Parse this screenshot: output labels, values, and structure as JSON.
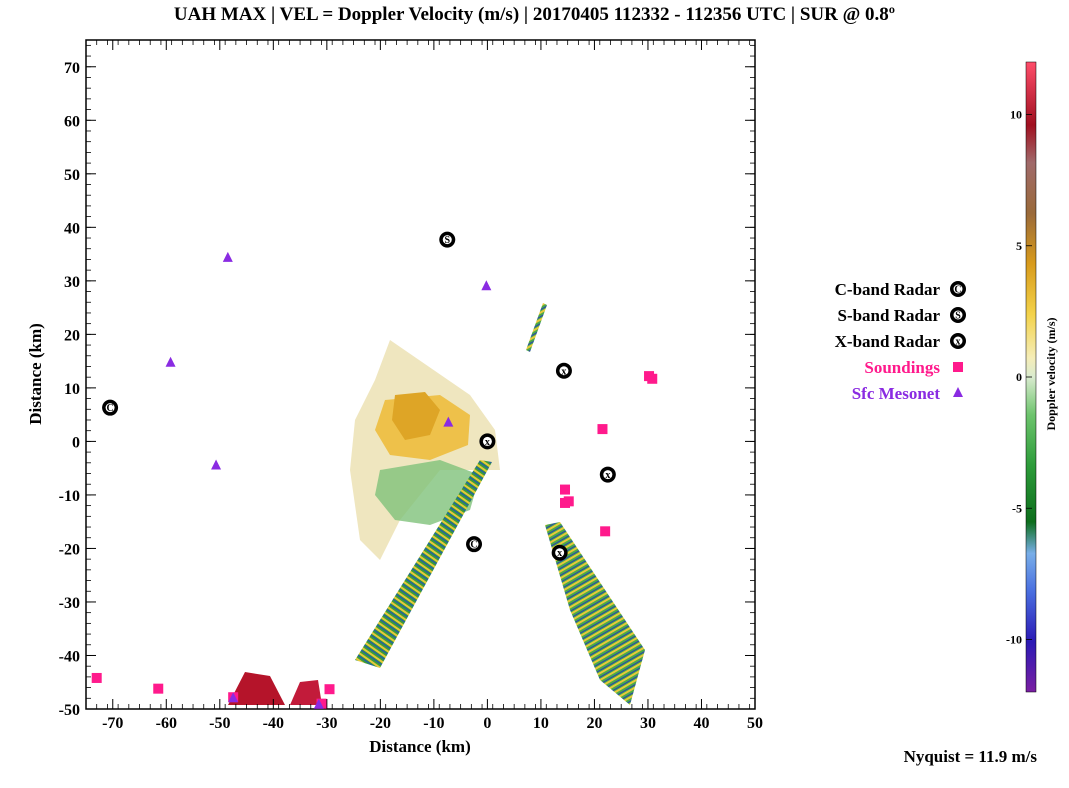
{
  "title": "UAH MAX | VEL = Doppler Velocity (m/s) | 20170405 112332 - 112356 UTC | SUR @ 0.8º",
  "nyquist": "Nyquist = 11.9 m/s",
  "chart_data": {
    "type": "scatter",
    "xlabel": "Distance (km)",
    "ylabel": "Distance (km)",
    "xlim": [
      -75,
      50
    ],
    "ylim": [
      -50,
      75
    ],
    "xticks": [
      -70,
      -60,
      -50,
      -40,
      -30,
      -20,
      -10,
      0,
      10,
      20,
      30,
      40,
      50
    ],
    "yticks": [
      -50,
      -40,
      -30,
      -20,
      -10,
      0,
      10,
      20,
      30,
      40,
      50,
      60,
      70
    ],
    "legend_position": "right",
    "series": [
      {
        "name": "C-band Radar",
        "marker": "C",
        "color": "#000000",
        "points": [
          [
            -70.5,
            6.3
          ],
          [
            -2.5,
            -19.2
          ]
        ]
      },
      {
        "name": "S-band Radar",
        "marker": "S",
        "color": "#000000",
        "points": [
          [
            -7.5,
            37.7
          ]
        ]
      },
      {
        "name": "X-band Radar",
        "marker": "x",
        "color": "#000000",
        "points": [
          [
            0,
            0
          ],
          [
            14.3,
            13.2
          ],
          [
            22.5,
            -6.2
          ],
          [
            13.5,
            -20.8
          ]
        ]
      },
      {
        "name": "Soundings",
        "marker": "square",
        "color": "#ff1a8c",
        "points": [
          [
            30.2,
            12.2
          ],
          [
            30.8,
            11.7
          ],
          [
            21.5,
            2.3
          ],
          [
            14.5,
            -9.0
          ],
          [
            14.5,
            -11.5
          ],
          [
            15.2,
            -11.2
          ],
          [
            22.0,
            -16.8
          ],
          [
            -73.0,
            -44.2
          ],
          [
            -61.5,
            -46.2
          ],
          [
            -29.5,
            -46.3
          ],
          [
            -47.5,
            -47.8
          ],
          [
            -31.0,
            -49.0
          ]
        ]
      },
      {
        "name": "Sfc Mesonet",
        "marker": "triangle",
        "color": "#8a2be2",
        "points": [
          [
            -48.5,
            34.3
          ],
          [
            -0.2,
            29.0
          ],
          [
            -59.2,
            14.7
          ],
          [
            -7.3,
            3.5
          ],
          [
            -50.7,
            -4.5
          ],
          [
            -31.5,
            -49.2
          ],
          [
            -47.5,
            -48.0
          ]
        ]
      }
    ],
    "colorbar": {
      "label": "Doppler velocity (m/s)",
      "range": [
        -12,
        12
      ],
      "ticks": [
        -10,
        -5,
        0,
        5,
        10
      ]
    }
  }
}
